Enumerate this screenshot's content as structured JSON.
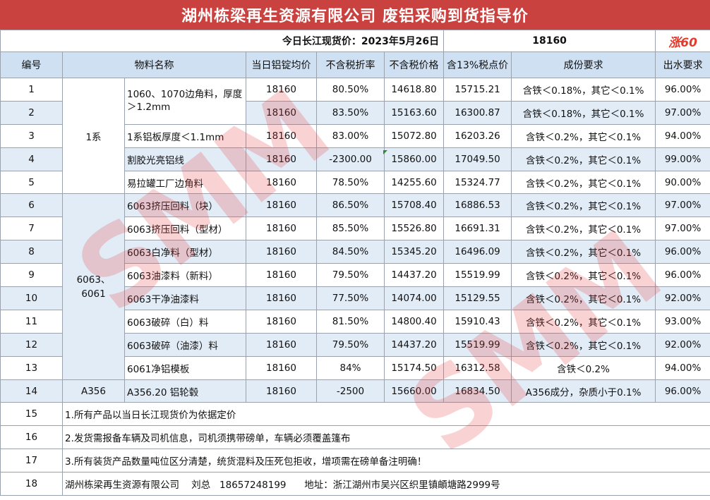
{
  "title": "湖州栋梁再生资源有限公司 废铝采购到货指导价",
  "price_label": "今日长江现货价：2023年5月26日",
  "price_value": "18160",
  "price_change": "涨60",
  "headers": [
    "编号",
    "物料名称",
    "当日铝锭均价",
    "不含税折率",
    "不含税价格",
    "含13%税点价",
    "成份要求",
    "出水要求"
  ],
  "groups": {
    "g1": "1系",
    "g6063": "6063、\n6061",
    "a356": "A356"
  },
  "rows": [
    {
      "no": "1",
      "name": "1060、1070边角料，厚度＞1.2mm",
      "price": "18160",
      "rate": "80.50%",
      "notax": "14618.80",
      "tax": "15715.21",
      "comp": "含铁＜0.18%，其它＜0.1%",
      "water": "96.00%"
    },
    {
      "no": "2",
      "name": "",
      "price": "18160",
      "rate": "83.50%",
      "notax": "15163.60",
      "tax": "16300.87",
      "comp": "含铁＜0.18%，其它＜0.1%",
      "water": "97.00%"
    },
    {
      "no": "3",
      "name": "1系铝板厚度＜1.1mm",
      "price": "18160",
      "rate": "83.00%",
      "notax": "15072.80",
      "tax": "16203.26",
      "comp": "含铁＜0.2%，其它＜0.1%",
      "water": "94.00%"
    },
    {
      "no": "4",
      "name": "割胶光亮铝线",
      "price": "18160",
      "rate": "-2300.00",
      "notax": "15860.00",
      "tax": "17049.50",
      "comp": "含铁＜0.2%，其它＜0.1%",
      "water": "99.00%"
    },
    {
      "no": "5",
      "name": "易拉罐工厂边角料",
      "price": "18160",
      "rate": "78.50%",
      "notax": "14255.60",
      "tax": "15324.77",
      "comp": "含铁＜0.2%，其它＜0.1%",
      "water": "90.00%"
    },
    {
      "no": "6",
      "name": "6063挤压回料（块）",
      "price": "18160",
      "rate": "86.50%",
      "notax": "15708.40",
      "tax": "16886.53",
      "comp": "含铁＜0.2%，其它＜0.1%",
      "water": "97.00%"
    },
    {
      "no": "7",
      "name": "6063挤压回料（型材）",
      "price": "18160",
      "rate": "85.50%",
      "notax": "15526.80",
      "tax": "16691.31",
      "comp": "含铁＜0.2%，其它＜0.1%",
      "water": "97.00%"
    },
    {
      "no": "8",
      "name": "6063白净料（型材）",
      "price": "18160",
      "rate": "84.50%",
      "notax": "15345.20",
      "tax": "16496.09",
      "comp": "含铁＜0.2%，其它＜0.1%",
      "water": "96.00%"
    },
    {
      "no": "9",
      "name": "6063油漆料（新料）",
      "price": "18160",
      "rate": "79.50%",
      "notax": "14437.20",
      "tax": "15519.99",
      "comp": "含铁＜0.2%，其它＜0.1%",
      "water": "96.00%"
    },
    {
      "no": "10",
      "name": "6063干净油漆料",
      "price": "18160",
      "rate": "77.50%",
      "notax": "14074.00",
      "tax": "15129.55",
      "comp": "含铁＜0.2%，其它＜0.1%",
      "water": "92.00%"
    },
    {
      "no": "11",
      "name": "6063破碎（白）料",
      "price": "18160",
      "rate": "81.50%",
      "notax": "14800.40",
      "tax": "15910.43",
      "comp": "含铁＜0.2%，其它＜0.1%",
      "water": "93.00%"
    },
    {
      "no": "12",
      "name": "6063破碎（油漆）料",
      "price": "18160",
      "rate": "79.50%",
      "notax": "14437.20",
      "tax": "15519.99",
      "comp": "含铁＜0.2%，其它＜0.1%",
      "water": "92.00%"
    },
    {
      "no": "13",
      "name": "6061净铝模板",
      "price": "18160",
      "rate": "84%",
      "notax": "15174.50",
      "tax": "16312.58",
      "comp": "含铁＜0.2%",
      "water": "94.00%"
    },
    {
      "no": "14",
      "name": "A356.20 铝轮毂",
      "price": "18160",
      "rate": "-2500",
      "notax": "15660.00",
      "tax": "16834.50",
      "comp": "A356成分，杂质小于0.1%",
      "water": "96.00%"
    }
  ],
  "notes": [
    {
      "no": "15",
      "text": "1.所有产品以当日长江现货价为依据定价"
    },
    {
      "no": "16",
      "text": "2.发货需报备车辆及司机信息，司机须携带磅单，车辆必须覆盖篷布"
    },
    {
      "no": "17",
      "text": "3.所有装货产品数量吨位区分清楚，统货混料及压死包拒收，增项需在磅单备注明确！"
    },
    {
      "no": "18",
      "text": "湖州栋梁再生资源有限公司    刘总   18657248199      地址：浙江湖州市吴兴区织里镇頔塘路2999号"
    }
  ],
  "watermark": "SMM"
}
